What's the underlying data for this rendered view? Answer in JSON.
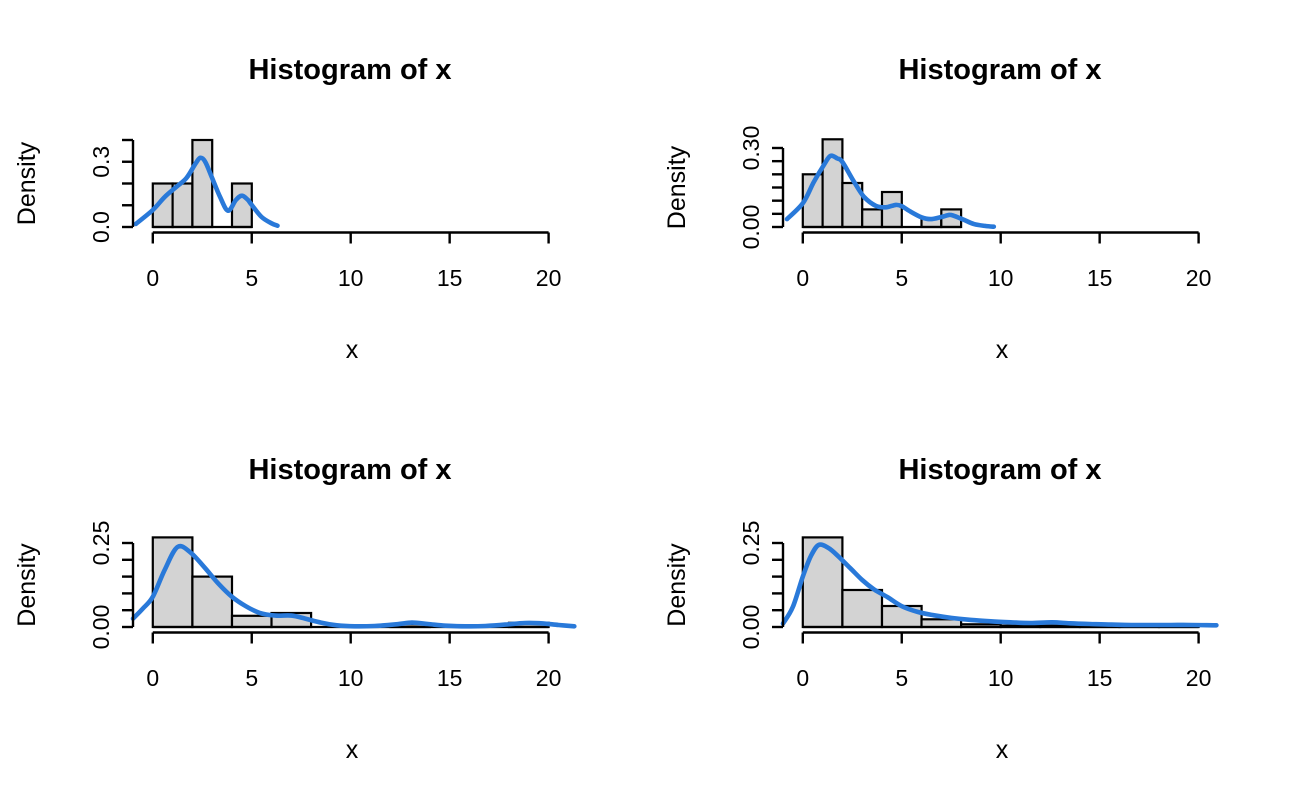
{
  "figure": {
    "background": "#ffffff",
    "grid": [
      2,
      2
    ],
    "panel_order": [
      "top-left",
      "top-right",
      "bottom-left",
      "bottom-right"
    ]
  },
  "chart_data": [
    {
      "type": "histogram",
      "position": "top-left",
      "title": "Histogram of x",
      "xlabel": "x",
      "ylabel": "Density",
      "x_ticks": [
        0,
        5,
        10,
        15,
        20
      ],
      "x_range": [
        -0.8,
        20.8
      ],
      "y_ticks": [
        0.0,
        0.1,
        0.2,
        0.3,
        0.4
      ],
      "y_tick_labels": [
        "0.0",
        "",
        "",
        "0.3",
        ""
      ],
      "bins": {
        "start": 0,
        "width": 1,
        "densities": [
          0.2,
          0.2,
          0.4,
          0,
          0.2
        ]
      },
      "density_curve": {
        "x": [
          -0.86,
          0,
          0.6,
          1.2,
          1.7,
          2.15,
          2.4,
          2.65,
          3.0,
          3.4,
          3.8,
          4.2,
          4.5,
          4.8,
          5.0,
          5.5,
          6.0,
          6.3
        ],
        "y": [
          0.014,
          0.078,
          0.138,
          0.185,
          0.225,
          0.29,
          0.318,
          0.3,
          0.225,
          0.138,
          0.075,
          0.124,
          0.144,
          0.125,
          0.101,
          0.046,
          0.017,
          0.006
        ]
      },
      "bar_fill": "#d3d3d3",
      "bar_border": "#000000",
      "curve_color": "#2979d9",
      "axis_color": "#000000"
    },
    {
      "type": "histogram",
      "position": "top-right",
      "title": "Histogram of x",
      "xlabel": "x",
      "ylabel": "Density",
      "x_ticks": [
        0,
        5,
        10,
        15,
        20
      ],
      "x_range": [
        -0.8,
        20.8
      ],
      "y_ticks": [
        0.0,
        0.05,
        0.1,
        0.15,
        0.2,
        0.25,
        0.3
      ],
      "y_tick_labels": [
        "0.00",
        "",
        "",
        "",
        "",
        "",
        "0.30"
      ],
      "bins": {
        "start": 0,
        "width": 1,
        "densities": [
          0.2,
          0.333,
          0.167,
          0.067,
          0.133,
          0,
          0.033,
          0.067
        ]
      },
      "density_curve": {
        "x": [
          -0.8,
          0,
          0.55,
          1.1,
          1.4,
          1.75,
          2.0,
          2.6,
          3.1,
          3.7,
          4.2,
          4.7,
          5.0,
          5.45,
          6.0,
          6.45,
          7.0,
          7.4,
          7.65,
          8.15,
          8.65,
          9.2,
          9.65
        ],
        "y": [
          0.03,
          0.09,
          0.17,
          0.24,
          0.27,
          0.26,
          0.247,
          0.17,
          0.114,
          0.08,
          0.075,
          0.084,
          0.079,
          0.058,
          0.037,
          0.03,
          0.038,
          0.046,
          0.042,
          0.027,
          0.011,
          0.004,
          0.001
        ]
      },
      "bar_fill": "#d3d3d3",
      "bar_border": "#000000",
      "curve_color": "#2979d9",
      "axis_color": "#000000"
    },
    {
      "type": "histogram",
      "position": "bottom-left",
      "title": "Histogram of x",
      "xlabel": "x",
      "ylabel": "Density",
      "x_ticks": [
        0,
        5,
        10,
        15,
        20
      ],
      "x_range": [
        -0.8,
        21.5
      ],
      "y_ticks": [
        0.0,
        0.05,
        0.1,
        0.15,
        0.2,
        0.25
      ],
      "y_tick_labels": [
        "0.00",
        "",
        "",
        "",
        "",
        "0.25"
      ],
      "bins": {
        "start": 0,
        "width": 2,
        "densities": [
          0.2667,
          0.15,
          0.0333,
          0.0417,
          0,
          0,
          0.0083,
          0,
          0,
          0.0125
        ]
      },
      "density_curve": {
        "x": [
          -1.0,
          -0.5,
          0,
          0.6,
          1.25,
          1.9,
          2.6,
          3.3,
          4.0,
          4.7,
          5.4,
          6.2,
          7.0,
          7.7,
          8.5,
          9.3,
          10.2,
          11.2,
          12.3,
          13.1,
          13.9,
          14.8,
          15.8,
          16.8,
          17.8,
          18.8,
          19.6,
          20.5,
          21.3
        ],
        "y": [
          0.025,
          0.055,
          0.09,
          0.17,
          0.238,
          0.222,
          0.178,
          0.13,
          0.09,
          0.062,
          0.042,
          0.034,
          0.034,
          0.025,
          0.013,
          0.005,
          0.002,
          0.003,
          0.008,
          0.013,
          0.009,
          0.004,
          0.002,
          0.003,
          0.007,
          0.012,
          0.011,
          0.006,
          0.002
        ]
      },
      "bar_fill": "#d3d3d3",
      "bar_border": "#000000",
      "curve_color": "#2979d9",
      "axis_color": "#000000"
    },
    {
      "type": "histogram",
      "position": "bottom-right",
      "title": "Histogram of x",
      "xlabel": "x",
      "ylabel": "Density",
      "x_ticks": [
        0,
        5,
        10,
        15,
        20
      ],
      "x_range": [
        -0.8,
        21.0
      ],
      "y_ticks": [
        0.0,
        0.05,
        0.1,
        0.15,
        0.2,
        0.25
      ],
      "y_tick_labels": [
        "0.00",
        "",
        "",
        "",
        "",
        "0.25"
      ],
      "bins": {
        "start": 0,
        "width": 2,
        "densities": [
          0.2667,
          0.11,
          0.0625,
          0.023,
          0.008,
          0.004,
          0.004,
          0.004,
          0.004,
          0.004
        ]
      },
      "density_curve": {
        "x": [
          -1.0,
          -0.5,
          0,
          0.4,
          0.8,
          1.3,
          1.8,
          2.4,
          3.0,
          3.6,
          4.3,
          5.0,
          5.8,
          6.6,
          7.5,
          8.5,
          9.5,
          10.5,
          11.5,
          12.6,
          13.5,
          14.5,
          15.6,
          16.6,
          17.6,
          18.6,
          19.6,
          20.9
        ],
        "y": [
          0.01,
          0.06,
          0.15,
          0.21,
          0.244,
          0.235,
          0.21,
          0.175,
          0.14,
          0.112,
          0.088,
          0.062,
          0.045,
          0.035,
          0.027,
          0.021,
          0.017,
          0.014,
          0.012,
          0.014,
          0.011,
          0.009,
          0.007,
          0.006,
          0.006,
          0.006,
          0.006,
          0.005
        ]
      },
      "bar_fill": "#d3d3d3",
      "bar_border": "#000000",
      "curve_color": "#2979d9",
      "axis_color": "#000000"
    }
  ]
}
